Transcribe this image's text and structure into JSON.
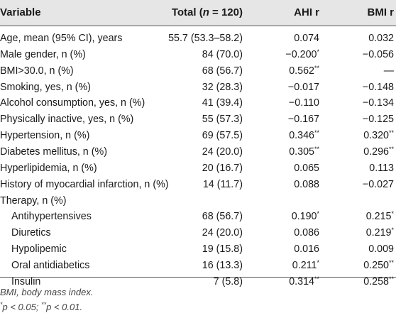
{
  "table": {
    "headers": {
      "variable": "Variable",
      "total_prefix": "Total (",
      "total_n": "n",
      "total_suffix": " = 120)",
      "ahi": "AHI r",
      "bmi": "BMI r"
    },
    "rows": [
      {
        "variable": "Age, mean (95% CI), years",
        "total": "55.7 (53.3–58.2)",
        "ahi": "0.074",
        "ahi_sig": "",
        "bmi": "0.032",
        "bmi_sig": ""
      },
      {
        "variable": "Male gender, n (%)",
        "total": "84 (70.0)",
        "ahi": "−0.200",
        "ahi_sig": "*",
        "bmi": "−0.056",
        "bmi_sig": ""
      },
      {
        "variable": "BMI>30.0, n (%)",
        "total": "68 (56.7)",
        "ahi": "0.562",
        "ahi_sig": "**",
        "bmi": "—",
        "bmi_sig": ""
      },
      {
        "variable": "Smoking, yes, n (%)",
        "total": "32 (28.3)",
        "ahi": "−0.017",
        "ahi_sig": "",
        "bmi": "−0.148",
        "bmi_sig": ""
      },
      {
        "variable": "Alcohol consumption, yes, n (%)",
        "total": "41 (39.4)",
        "ahi": "−0.110",
        "ahi_sig": "",
        "bmi": "−0.134",
        "bmi_sig": ""
      },
      {
        "variable": "Physically inactive, yes, n (%)",
        "total": "55 (57.3)",
        "ahi": "−0.167",
        "ahi_sig": "",
        "bmi": "−0.125",
        "bmi_sig": ""
      },
      {
        "variable": "Hypertension, n (%)",
        "total": "69 (57.5)",
        "ahi": "0.346",
        "ahi_sig": "**",
        "bmi": "0.320",
        "bmi_sig": "**"
      },
      {
        "variable": "Diabetes mellitus, n (%)",
        "total": "24 (20.0)",
        "ahi": "0.305",
        "ahi_sig": "**",
        "bmi": "0.296",
        "bmi_sig": "**"
      },
      {
        "variable": "Hyperlipidemia, n (%)",
        "total": "20 (16.7)",
        "ahi": "0.065",
        "ahi_sig": "",
        "bmi": "0.113",
        "bmi_sig": ""
      },
      {
        "variable": "History of myocardial infarction, n (%)",
        "total": "14 (11.7)",
        "ahi": "0.088",
        "ahi_sig": "",
        "bmi": "−0.027",
        "bmi_sig": ""
      },
      {
        "variable": "Therapy, n (%)",
        "total": "",
        "ahi": "",
        "ahi_sig": "",
        "bmi": "",
        "bmi_sig": ""
      },
      {
        "variable": "Antihypertensives",
        "indent": true,
        "total": "68 (56.7)",
        "ahi": "0.190",
        "ahi_sig": "*",
        "bmi": "0.215",
        "bmi_sig": "*"
      },
      {
        "variable": "Diuretics",
        "indent": true,
        "total": "24 (20.0)",
        "ahi": "0.086",
        "ahi_sig": "",
        "bmi": "0.219",
        "bmi_sig": "*"
      },
      {
        "variable": "Hypolipemic",
        "indent": true,
        "total": "19 (15.8)",
        "ahi": "0.016",
        "ahi_sig": "",
        "bmi": "0.009",
        "bmi_sig": ""
      },
      {
        "variable": "Oral antidiabetics",
        "indent": true,
        "total": "16 (13.3)",
        "ahi": "0.211",
        "ahi_sig": "*",
        "bmi": "0.250",
        "bmi_sig": "**"
      },
      {
        "variable": "Insulin",
        "indent": true,
        "total": "7 (5.8)",
        "ahi": "0.314",
        "ahi_sig": "**",
        "bmi": "0.258",
        "bmi_sig": "**"
      }
    ]
  },
  "footnotes": {
    "abbrev": "BMI, body mass index.",
    "sig_star1": "*",
    "sig_text1": "p < 0.05; ",
    "sig_star2": "**",
    "sig_text2": "p < 0.01."
  }
}
